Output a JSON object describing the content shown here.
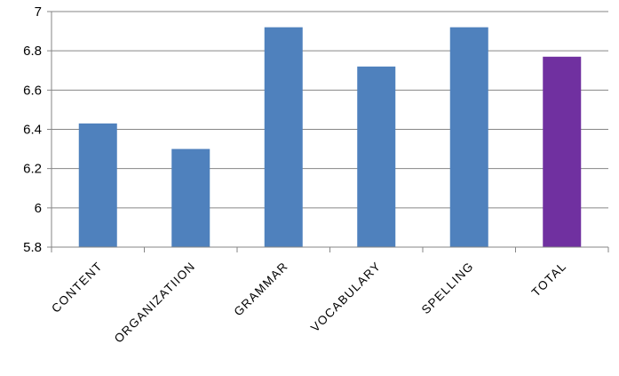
{
  "chart_data": {
    "type": "bar",
    "title": "",
    "xlabel": "",
    "ylabel": "",
    "categories": [
      "CONTENT",
      "ORGANIZATIION",
      "GRAMMAR",
      "VOCABULARY",
      "SPELLING",
      "TOTAL"
    ],
    "values": [
      6.43,
      6.3,
      6.92,
      6.72,
      6.92,
      6.77
    ],
    "colors": [
      "#4f81bd",
      "#4f81bd",
      "#4f81bd",
      "#4f81bd",
      "#4f81bd",
      "#7030a0"
    ],
    "ylim": [
      5.8,
      7
    ],
    "yticks": [
      "5.8",
      "6",
      "6.2",
      "6.4",
      "6.6",
      "6.8",
      "7"
    ],
    "grid": true,
    "legend": "none"
  }
}
